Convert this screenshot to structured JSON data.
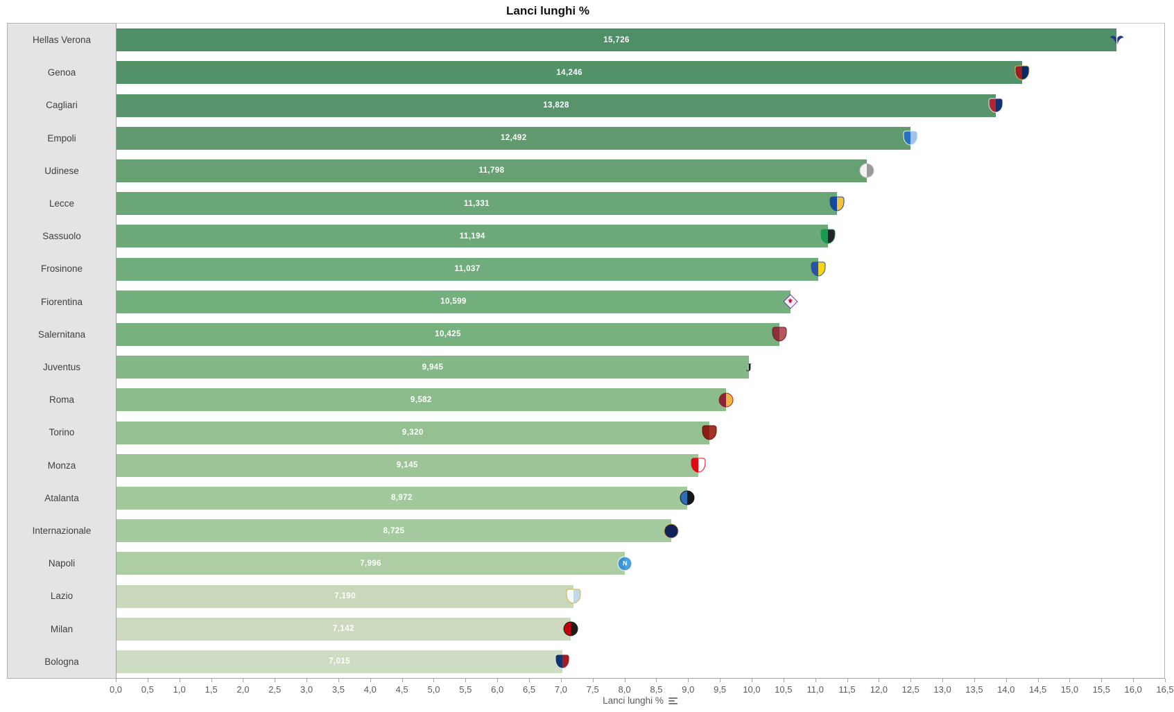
{
  "title": "Lanci lunghi %",
  "colors": {
    "sidebar_bg": "#e4e4e4",
    "border": "#b3b3b3",
    "axis_line": "#a6a6a6",
    "tick_text": "#595959",
    "value_label_text": "#ffffff",
    "category_text": "#3f3f3f",
    "title_text": "#111111"
  },
  "chart_data": {
    "type": "bar",
    "orientation": "horizontal",
    "title": "Lanci lunghi %",
    "xlabel": "Lanci lunghi %",
    "ylabel": "",
    "xlim": [
      0,
      16.5
    ],
    "tick_step": 0.5,
    "grid": false,
    "legend": "none",
    "value_label_position": "inside-center",
    "x_tick_labels": [
      "0,0",
      "0,5",
      "1,0",
      "1,5",
      "2,0",
      "2,5",
      "3,0",
      "3,5",
      "4,0",
      "4,5",
      "5,0",
      "5,5",
      "6,0",
      "6,5",
      "7,0",
      "7,5",
      "8,0",
      "8,5",
      "9,0",
      "9,5",
      "10,0",
      "10,5",
      "11,0",
      "11,5",
      "12,0",
      "12,5",
      "13,0",
      "13,5",
      "14,0",
      "14,5",
      "15,0",
      "15,5",
      "16,0",
      "16,5"
    ],
    "categories": [
      "Hellas Verona",
      "Genoa",
      "Cagliari",
      "Empoli",
      "Udinese",
      "Lecce",
      "Sassuolo",
      "Frosinone",
      "Fiorentina",
      "Salernitana",
      "Juventus",
      "Roma",
      "Torino",
      "Monza",
      "Atalanta",
      "Internazionale",
      "Napoli",
      "Lazio",
      "Milan",
      "Bologna"
    ],
    "values": [
      15.726,
      14.246,
      13.828,
      12.492,
      11.798,
      11.331,
      11.194,
      11.037,
      10.599,
      10.425,
      9.945,
      9.582,
      9.32,
      9.145,
      8.972,
      8.725,
      7.996,
      7.19,
      7.142,
      7.015
    ],
    "value_labels": [
      "15,726",
      "14,246",
      "13,828",
      "12,492",
      "11,798",
      "11,331",
      "11,194",
      "11,037",
      "10,599",
      "10,425",
      "9,945",
      "9,582",
      "9,320",
      "9,145",
      "8,972",
      "8,725",
      "7,996",
      "7,190",
      "7,142",
      "7,015"
    ],
    "bar_colors": [
      "#4e8f68",
      "#539168",
      "#58946b",
      "#619a6f",
      "#67a073",
      "#6ba676",
      "#6ea97a",
      "#71ac7c",
      "#74af7e",
      "#77b180",
      "#84b886",
      "#8cbc8c",
      "#95c092",
      "#9cc497",
      "#a2c89c",
      "#a6caa0",
      "#adcda4",
      "#c9d8bb",
      "#ccd9be",
      "#cfdcc4"
    ],
    "logos": [
      {
        "shape": "wings",
        "primary": "#1d3c85",
        "secondary": "#1d3c85"
      },
      {
        "shape": "shield",
        "primary": "#9b1d20",
        "secondary": "#0a2a5e",
        "border": "#d7b65c"
      },
      {
        "shape": "shield",
        "primary": "#b02735",
        "secondary": "#14336e",
        "border": "#e8e8e8"
      },
      {
        "shape": "shield",
        "primary": "#2a6fc0",
        "secondary": "#9ec4ea",
        "border": "#f0f0f0"
      },
      {
        "shape": "circle",
        "primary": "#f2f2f2",
        "secondary": "#9a9a9a",
        "border": "#c8c8c8"
      },
      {
        "shape": "shield",
        "primary": "#16499c",
        "secondary": "#f2c23a",
        "border": "#16499c"
      },
      {
        "shape": "shield",
        "primary": "#1a9a50",
        "secondary": "#22242a",
        "border": "#1a9a50"
      },
      {
        "shape": "shield",
        "primary": "#2a53a0",
        "secondary": "#f7d417",
        "border": "#2a53a0"
      },
      {
        "shape": "diamond",
        "primary": "#f4eefb",
        "secondary": "#f4eefb",
        "border": "#6a3ba2",
        "letter": "⚜",
        "letter_color": "#c4112e"
      },
      {
        "shape": "shield",
        "primary": "#8c2f39",
        "secondary": "#b5575d",
        "border": "#6d2029"
      },
      {
        "shape": "letter",
        "primary": "#1b1b1b",
        "secondary": "#1b1b1b",
        "letter": "J",
        "letter_color": "#1b1b1b"
      },
      {
        "shape": "circle",
        "primary": "#8e2433",
        "secondary": "#f0b542",
        "border": "#8e2433"
      },
      {
        "shape": "shield",
        "primary": "#8a1e12",
        "secondary": "#a33326",
        "border": "#5f140c"
      },
      {
        "shape": "shield",
        "primary": "#e30613",
        "secondary": "#ffffff",
        "border": "#e30613"
      },
      {
        "shape": "circle",
        "primary": "#2f6db4",
        "secondary": "#17171b",
        "border": "#17171b"
      },
      {
        "shape": "circle",
        "primary": "#122258",
        "secondary": "#122258",
        "border": "#c3a24a"
      },
      {
        "shape": "circle",
        "primary": "#3f93d2",
        "secondary": "#4da0dc",
        "border": "#ffffff",
        "letter": "N",
        "letter_color": "#ffffff"
      },
      {
        "shape": "shield",
        "primary": "#f4fafd",
        "secondary": "#bcd9ee",
        "border": "#d9b23c"
      },
      {
        "shape": "circle",
        "primary": "#c2000b",
        "secondary": "#201c1c",
        "border": "#201c1c"
      },
      {
        "shape": "shield",
        "primary": "#14336e",
        "secondary": "#a21c26",
        "border": "#e8e8e8"
      }
    ]
  },
  "axis_field_button": {
    "icon": "field-list-icon"
  }
}
